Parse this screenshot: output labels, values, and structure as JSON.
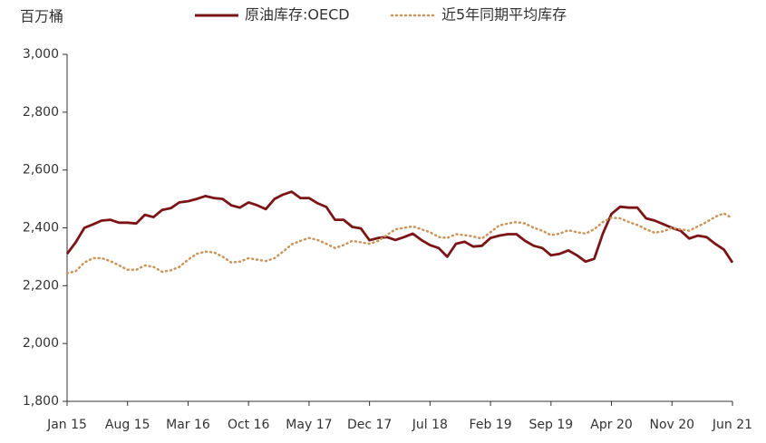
{
  "chart_data": {
    "type": "line",
    "y_axis_label": "百万桶",
    "categories": [
      "Jan 15",
      null,
      null,
      null,
      null,
      null,
      null,
      "Aug 15",
      null,
      null,
      null,
      null,
      null,
      null,
      "Mar 16",
      null,
      null,
      null,
      null,
      null,
      null,
      "Oct 16",
      null,
      null,
      null,
      null,
      null,
      null,
      "May 17",
      null,
      null,
      null,
      null,
      null,
      null,
      "Dec 17",
      null,
      null,
      null,
      null,
      null,
      null,
      "Jul 18",
      null,
      null,
      null,
      null,
      null,
      null,
      "Feb 19",
      null,
      null,
      null,
      null,
      null,
      null,
      "Sep 19",
      null,
      null,
      null,
      null,
      null,
      null,
      "Apr 20",
      null,
      null,
      null,
      null,
      null,
      null,
      "Nov 20",
      null,
      null,
      null,
      null,
      null,
      null,
      "Jun 21"
    ],
    "series": [
      {
        "name": "原油库存:OECD",
        "color": "#7b1416",
        "style": "solid",
        "values": [
          2310,
          2350,
          2400,
          2412,
          2425,
          2428,
          2418,
          2418,
          2415,
          2445,
          2437,
          2462,
          2468,
          2488,
          2492,
          2500,
          2510,
          2503,
          2500,
          2478,
          2470,
          2488,
          2478,
          2465,
          2500,
          2515,
          2525,
          2503,
          2503,
          2485,
          2472,
          2428,
          2428,
          2403,
          2398,
          2357,
          2365,
          2368,
          2358,
          2368,
          2380,
          2358,
          2340,
          2330,
          2300,
          2345,
          2352,
          2335,
          2338,
          2365,
          2373,
          2378,
          2378,
          2355,
          2338,
          2330,
          2305,
          2310,
          2322,
          2305,
          2283,
          2293,
          2380,
          2448,
          2473,
          2470,
          2470,
          2433,
          2425,
          2413,
          2400,
          2390,
          2363,
          2373,
          2368,
          2345,
          2325,
          2280
        ]
      },
      {
        "name": "近5年同期平均库存",
        "color": "#c9955a",
        "style": "dotted",
        "values": [
          2243,
          2250,
          2280,
          2295,
          2295,
          2285,
          2270,
          2255,
          2255,
          2270,
          2265,
          2248,
          2253,
          2265,
          2290,
          2310,
          2318,
          2315,
          2300,
          2280,
          2283,
          2295,
          2290,
          2285,
          2295,
          2318,
          2343,
          2355,
          2365,
          2358,
          2345,
          2330,
          2340,
          2355,
          2350,
          2345,
          2355,
          2375,
          2395,
          2400,
          2405,
          2395,
          2385,
          2368,
          2365,
          2378,
          2375,
          2370,
          2363,
          2385,
          2408,
          2415,
          2420,
          2415,
          2400,
          2390,
          2375,
          2380,
          2392,
          2385,
          2380,
          2395,
          2420,
          2435,
          2433,
          2420,
          2410,
          2395,
          2383,
          2388,
          2400,
          2395,
          2390,
          2405,
          2420,
          2438,
          2450,
          2433
        ]
      }
    ],
    "ylim": [
      1800,
      3000
    ],
    "yticks": [
      {
        "value": 1800,
        "label": "1,800"
      },
      {
        "value": 2000,
        "label": "2,000"
      },
      {
        "value": 2200,
        "label": "2,200"
      },
      {
        "value": 2400,
        "label": "2,400"
      },
      {
        "value": 2600,
        "label": "2,600"
      },
      {
        "value": 2800,
        "label": "2,800"
      },
      {
        "value": 3000,
        "label": "3,000"
      }
    ],
    "grid": false,
    "legend": "top"
  }
}
